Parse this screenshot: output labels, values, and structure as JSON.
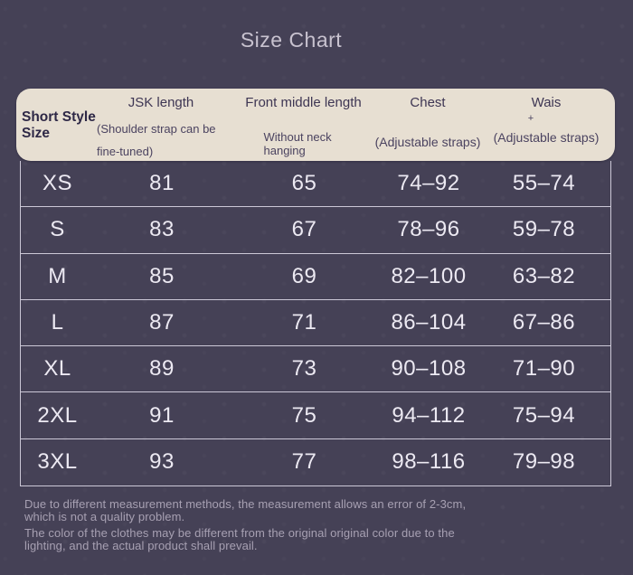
{
  "chart_data": {
    "type": "table",
    "title": "Size Chart",
    "columns": [
      {
        "main": "Short Style Size",
        "sub": ""
      },
      {
        "main": "JSK length",
        "sub": "(Shoulder strap can be fine-tuned)"
      },
      {
        "main": "Front middle length",
        "sub": "Without neck hanging"
      },
      {
        "main": "Chest",
        "sub": "(Adjustable straps)"
      },
      {
        "main": "Wais",
        "plus": "+",
        "sub": "(Adjustable straps)"
      }
    ],
    "rows": [
      [
        "XS",
        "81",
        "65",
        "74–92",
        "55–74"
      ],
      [
        "S",
        "83",
        "67",
        "78–96",
        "59–78"
      ],
      [
        "M",
        "85",
        "69",
        "82–100",
        "63–82"
      ],
      [
        "L",
        "87",
        "71",
        "86–104",
        "67–86"
      ],
      [
        "XL",
        "89",
        "73",
        "90–108",
        "71–90"
      ],
      [
        "2XL",
        "91",
        "75",
        "94–112",
        "75–94"
      ],
      [
        "3XL",
        "93",
        "77",
        "98–116",
        "79–98"
      ]
    ],
    "notes": [
      "Due to different measurement methods, the measurement allows an error of 2-3cm,\nwhich is not a quality problem.",
      "The color of the clothes may be different from the original original color due to the\nlighting, and the actual product shall prevail."
    ],
    "colors": {
      "background": "#454156",
      "header_panel": "#e7dfd2",
      "header_text": "#2e2846",
      "body_text": "#ece9f2",
      "grid_line": "#ccc8d7",
      "note_text": "#a7a0b2"
    }
  }
}
